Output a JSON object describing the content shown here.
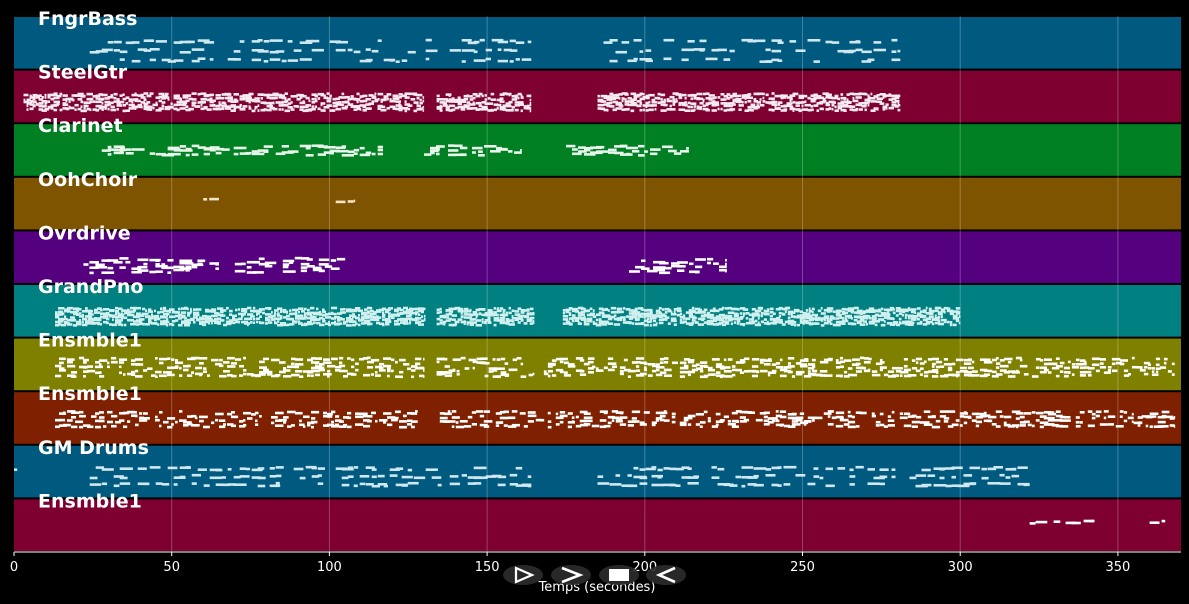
{
  "chart_data": {
    "type": "piano-roll",
    "xlabel": "Temps (secondes)",
    "xlim": [
      0,
      370
    ],
    "xticks": [
      0,
      50,
      100,
      150,
      200,
      250,
      300,
      350
    ],
    "grid": true,
    "tracks": [
      {
        "name": "FngrBass",
        "color": "#005a80",
        "note_color": "#cfe8f0",
        "density": 1,
        "note_rows": 3,
        "note_range": [
          0.45,
          0.8
        ],
        "segments": [
          [
            24,
            164
          ],
          [
            185,
            281
          ]
        ]
      },
      {
        "name": "SteelGtr",
        "color": "#7d0030",
        "note_color": "#f5eaf0",
        "density": 3,
        "note_rows": 5,
        "note_range": [
          0.45,
          0.72
        ],
        "segments": [
          [
            3,
            130
          ],
          [
            134,
            164
          ],
          [
            185,
            281
          ]
        ]
      },
      {
        "name": "Clarinet",
        "color": "#007f23",
        "note_color": "#e8f5ea",
        "density": 1,
        "note_rows": 3,
        "note_range": [
          0.42,
          0.55
        ],
        "segments": [
          [
            24,
            117
          ],
          [
            130,
            161
          ],
          [
            175,
            214
          ]
        ]
      },
      {
        "name": "OohChoir",
        "color": "#7f5400",
        "note_color": "#f2e4c8",
        "density": 1,
        "note_rows": 1,
        "note_range": [
          0.42,
          0.48
        ],
        "segments": [
          [
            60,
            66
          ],
          [
            102,
            108
          ]
        ]
      },
      {
        "name": "Ovrdrive",
        "color": "#55007f",
        "note_color": "#ffffff",
        "density": 1,
        "note_rows": 4,
        "note_range": [
          0.52,
          0.74
        ],
        "segments": [
          [
            22,
            65
          ],
          [
            70,
            105
          ],
          [
            195,
            226
          ]
        ]
      },
      {
        "name": "GrandPno",
        "color": "#008080",
        "note_color": "#d0f0f0",
        "density": 3,
        "note_rows": 6,
        "note_range": [
          0.45,
          0.72
        ],
        "segments": [
          [
            13,
            130
          ],
          [
            134,
            165
          ],
          [
            174,
            300
          ]
        ]
      },
      {
        "name": "Ensmble1",
        "color": "#7f7f00",
        "note_color": "#ffffff",
        "density": 2,
        "note_rows": 5,
        "note_range": [
          0.38,
          0.68
        ],
        "segments": [
          [
            13,
            130
          ],
          [
            134,
            165
          ],
          [
            168,
            368
          ]
        ]
      },
      {
        "name": "Ensmble1",
        "color": "#7f2000",
        "note_color": "#ffffff",
        "density": 2,
        "note_rows": 4,
        "note_range": [
          0.38,
          0.62
        ],
        "segments": [
          [
            13,
            128
          ],
          [
            135,
            355
          ],
          [
            355,
            368
          ]
        ]
      },
      {
        "name": "GM Drums",
        "color": "#005a80",
        "note_color": "#cfe8f0",
        "density": 1,
        "note_rows": 3,
        "note_range": [
          0.42,
          0.72
        ],
        "segments": [
          [
            0,
            1
          ],
          [
            24,
            164
          ],
          [
            185,
            322
          ]
        ]
      },
      {
        "name": "Ensmble1",
        "color": "#7d0030",
        "note_color": "#ffffff",
        "density": 1,
        "note_rows": 1,
        "note_range": [
          0.42,
          0.48
        ],
        "segments": [
          [
            322,
            365
          ]
        ]
      }
    ]
  },
  "controls": {
    "play_icon": "play-icon",
    "forward_icon": "forward-icon",
    "stop_icon": "stop-icon",
    "rewind_icon": "rewind-icon"
  }
}
